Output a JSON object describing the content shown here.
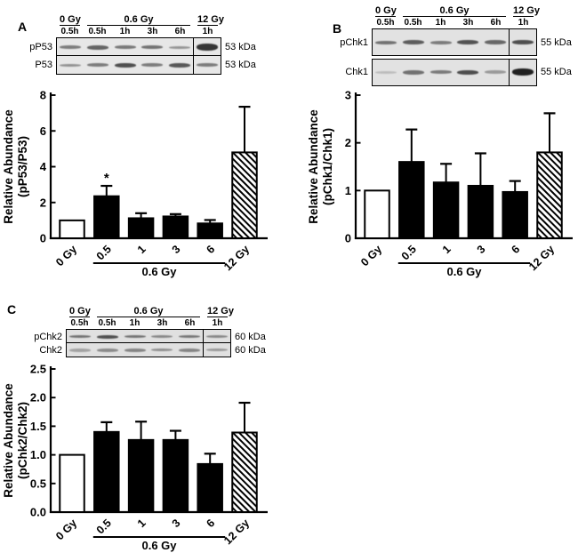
{
  "panels": [
    {
      "label": "A",
      "blot": {
        "groups": [
          {
            "label": "0 Gy",
            "lanes": 1
          },
          {
            "label": "0.6 Gy",
            "lanes": 4
          },
          {
            "label": "12 Gy",
            "lanes": 1
          }
        ],
        "time_labels": [
          "0.5h",
          "0.5h",
          "1h",
          "3h",
          "6h",
          "1h"
        ],
        "separate_rows": false,
        "rows": [
          {
            "protein": "pP53",
            "kda": "53 kDa",
            "bands": [
              [
                0.5,
                4
              ],
              [
                0.62,
                5
              ],
              [
                0.52,
                4
              ],
              [
                0.55,
                4
              ],
              [
                0.38,
                3
              ],
              [
                0.85,
                8
              ]
            ]
          },
          {
            "protein": "P53",
            "kda": "53 kDa",
            "bands": [
              [
                0.4,
                3
              ],
              [
                0.5,
                4
              ],
              [
                0.72,
                5
              ],
              [
                0.5,
                4
              ],
              [
                0.68,
                5
              ],
              [
                0.5,
                4
              ]
            ]
          }
        ]
      }
    },
    {
      "label": "B",
      "blot": {
        "groups": [
          {
            "label": "0 Gy",
            "lanes": 1
          },
          {
            "label": "0.6 Gy",
            "lanes": 4
          },
          {
            "label": "12 Gy",
            "lanes": 1
          }
        ],
        "time_labels": [
          "0.5h",
          "0.5h",
          "1h",
          "3h",
          "6h",
          "1h"
        ],
        "separate_rows": true,
        "rows": [
          {
            "protein": "pChk1",
            "kda": "55 kDa",
            "bands": [
              [
                0.55,
                4
              ],
              [
                0.65,
                5
              ],
              [
                0.5,
                4
              ],
              [
                0.7,
                5
              ],
              [
                0.6,
                5
              ],
              [
                0.72,
                5
              ]
            ]
          },
          {
            "protein": "Chk1",
            "kda": "55 kDa",
            "bands": [
              [
                0.18,
                3
              ],
              [
                0.55,
                5
              ],
              [
                0.5,
                4
              ],
              [
                0.72,
                5
              ],
              [
                0.35,
                4
              ],
              [
                0.95,
                8
              ]
            ]
          }
        ]
      }
    },
    {
      "label": "C",
      "blot": {
        "groups": [
          {
            "label": "0 Gy",
            "lanes": 1
          },
          {
            "label": "0.6 Gy",
            "lanes": 4
          },
          {
            "label": "12 Gy",
            "lanes": 1
          }
        ],
        "time_labels": [
          "0.5h",
          "0.5h",
          "1h",
          "3h",
          "6h",
          "1h"
        ],
        "separate_rows": false,
        "rows": [
          {
            "protein": "pChk2",
            "kda": "60 kDa",
            "bands": [
              [
                0.52,
                3
              ],
              [
                0.7,
                4
              ],
              [
                0.52,
                3
              ],
              [
                0.42,
                3
              ],
              [
                0.5,
                3
              ],
              [
                0.42,
                3
              ]
            ]
          },
          {
            "protein": "Chk2",
            "kda": "60 kDa",
            "bands": [
              [
                0.3,
                4
              ],
              [
                0.42,
                4
              ],
              [
                0.45,
                4
              ],
              [
                0.4,
                3
              ],
              [
                0.45,
                4
              ],
              [
                0.35,
                3
              ]
            ]
          }
        ]
      }
    }
  ],
  "chart_data": [
    {
      "panel": "A",
      "type": "bar",
      "categories": [
        "0 Gy",
        "0.5",
        "1",
        "3",
        "6",
        "12 Gy"
      ],
      "values": [
        1.0,
        2.35,
        1.12,
        1.22,
        0.83,
        4.8
      ],
      "errors_up": [
        0,
        0.58,
        0.28,
        0.13,
        0.19,
        2.55
      ],
      "bar_styles": [
        "open",
        "solid",
        "solid",
        "solid",
        "solid",
        "hatched"
      ],
      "significance": [
        "",
        "*",
        "",
        "",
        "",
        ""
      ],
      "title": "",
      "xlabel": "",
      "ylabel_line1": "Relative Abundance",
      "ylabel_line2": "(pP53/P53)",
      "ylim": [
        0,
        8
      ],
      "yticks": [
        0,
        2,
        4,
        6,
        8
      ],
      "ytick_labels": [
        "0",
        "2",
        "4",
        "6",
        "8"
      ],
      "group_label": "0.6 Gy",
      "group_indices": [
        1,
        4
      ],
      "grid": false,
      "legend": "none"
    },
    {
      "panel": "B",
      "type": "bar",
      "categories": [
        "0 Gy",
        "0.5",
        "1",
        "3",
        "6",
        "12 Gy"
      ],
      "values": [
        1.0,
        1.6,
        1.17,
        1.1,
        0.97,
        1.8
      ],
      "errors_up": [
        0,
        0.68,
        0.39,
        0.68,
        0.23,
        0.82
      ],
      "bar_styles": [
        "open",
        "solid",
        "solid",
        "solid",
        "solid",
        "hatched"
      ],
      "significance": [
        "",
        "",
        "",
        "",
        "",
        ""
      ],
      "title": "",
      "xlabel": "",
      "ylabel_line1": "Relative Abundance",
      "ylabel_line2": "(pChk1/Chk1)",
      "ylim": [
        0,
        3
      ],
      "yticks": [
        0,
        1,
        2,
        3
      ],
      "ytick_labels": [
        "0",
        "1",
        "2",
        "3"
      ],
      "group_label": "0.6 Gy",
      "group_indices": [
        1,
        4
      ],
      "grid": false,
      "legend": "none"
    },
    {
      "panel": "C",
      "type": "bar",
      "categories": [
        "0 Gy",
        "0.5",
        "1",
        "3",
        "6",
        "12 Gy"
      ],
      "values": [
        1.0,
        1.4,
        1.26,
        1.26,
        0.84,
        1.39
      ],
      "errors_up": [
        0,
        0.17,
        0.32,
        0.16,
        0.18,
        0.52
      ],
      "bar_styles": [
        "open",
        "solid",
        "solid",
        "solid",
        "solid",
        "hatched"
      ],
      "significance": [
        "",
        "",
        "",
        "",
        "",
        ""
      ],
      "title": "",
      "xlabel": "",
      "ylabel_line1": "Relative Abundance",
      "ylabel_line2": "(pChk2/Chk2)",
      "ylim": [
        0,
        2.5
      ],
      "yticks": [
        0,
        0.5,
        1.0,
        1.5,
        2.0,
        2.5
      ],
      "ytick_labels": [
        "0.0",
        "0.5",
        "1.0",
        "1.5",
        "2.0",
        "2.5"
      ],
      "group_label": "0.6 Gy",
      "group_indices": [
        1,
        4
      ],
      "grid": false,
      "legend": "none"
    }
  ]
}
